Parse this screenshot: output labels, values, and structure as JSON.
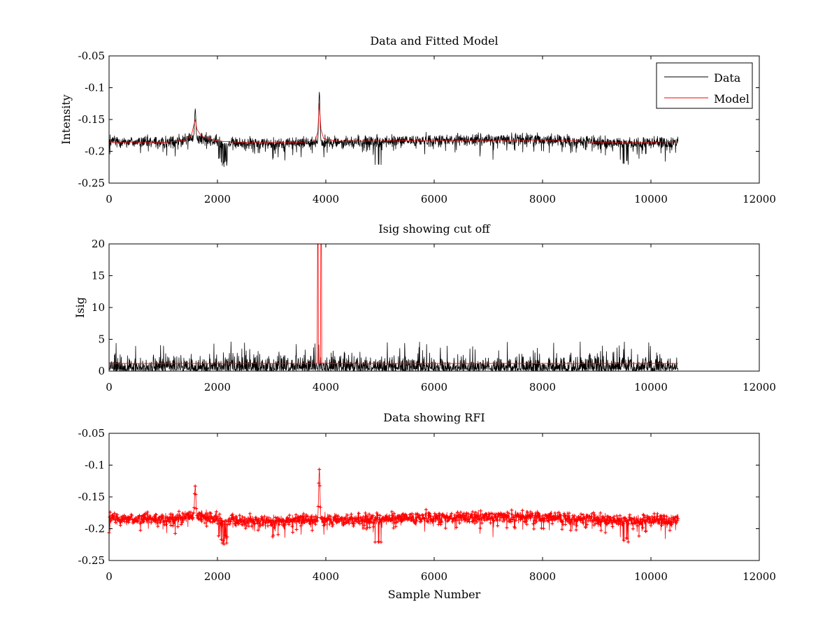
{
  "figure": {
    "background": "#ffffff"
  },
  "colors": {
    "data": "#000000",
    "model": "#ff0000",
    "axes": "#000000"
  },
  "chart_data": [
    {
      "type": "line",
      "title": "Data and Fitted Model",
      "xlabel": "",
      "ylabel": "Intensity",
      "xlim": [
        0,
        12000
      ],
      "ylim": [
        -0.25,
        -0.05
      ],
      "y_reversed": true,
      "xticks": [
        "0",
        "2000",
        "4000",
        "6000",
        "8000",
        "10000",
        "12000"
      ],
      "yticks": [
        "-0.05",
        "-0.1",
        "-0.15",
        "-0.2",
        "-0.25"
      ],
      "grid": false,
      "legend": {
        "position": "top-right",
        "entries": [
          "Data",
          "Model"
        ]
      },
      "series": [
        {
          "name": "Data",
          "color": "#000000",
          "style": "line",
          "x_range": [
            0,
            10500
          ],
          "baseline": [
            [
              0,
              -0.184
            ],
            [
              1000,
              -0.186
            ],
            [
              1500,
              -0.178
            ],
            [
              2200,
              -0.188
            ],
            [
              3500,
              -0.186
            ],
            [
              4800,
              -0.185
            ],
            [
              6000,
              -0.182
            ],
            [
              8000,
              -0.181
            ],
            [
              8800,
              -0.185
            ],
            [
              9600,
              -0.188
            ],
            [
              10500,
              -0.185
            ]
          ],
          "noise_amplitude": 0.018,
          "peaks": [
            [
              1590,
              -0.133
            ],
            [
              3880,
              -0.108
            ]
          ],
          "dips": [
            [
              2100,
              -0.225
            ],
            [
              4950,
              -0.223
            ],
            [
              9500,
              -0.223
            ]
          ]
        },
        {
          "name": "Model",
          "color": "#ff0000",
          "style": "line",
          "points": [
            [
              0,
              -0.186
            ],
            [
              1000,
              -0.186
            ],
            [
              1400,
              -0.183
            ],
            [
              1520,
              -0.175
            ],
            [
              1560,
              -0.16
            ],
            [
              1590,
              -0.15
            ],
            [
              1620,
              -0.165
            ],
            [
              1700,
              -0.176
            ],
            [
              2000,
              -0.184
            ],
            [
              2500,
              -0.186
            ],
            [
              3500,
              -0.186
            ],
            [
              3800,
              -0.184
            ],
            [
              3850,
              -0.17
            ],
            [
              3880,
              -0.125
            ],
            [
              3910,
              -0.165
            ],
            [
              3960,
              -0.18
            ],
            [
              4200,
              -0.184
            ],
            [
              5000,
              -0.184
            ],
            [
              6000,
              -0.183
            ],
            [
              7000,
              -0.183
            ],
            [
              8000,
              -0.182
            ],
            [
              8500,
              -0.183
            ],
            [
              9000,
              -0.186
            ],
            [
              9800,
              -0.187
            ],
            [
              10200,
              -0.185
            ],
            [
              10500,
              -0.185
            ]
          ]
        }
      ]
    },
    {
      "type": "line",
      "title": "Isig showing cut off",
      "xlabel": "",
      "ylabel": "Isig",
      "xlim": [
        0,
        12000
      ],
      "ylim": [
        0,
        20
      ],
      "xticks": [
        "0",
        "2000",
        "4000",
        "6000",
        "8000",
        "10000",
        "12000"
      ],
      "yticks": [
        "0",
        "5",
        "10",
        "15",
        "20"
      ],
      "grid": false,
      "series": [
        {
          "color": "#000000",
          "style": "line",
          "x_range": [
            0,
            10500
          ],
          "noise_amplitude": 3.0,
          "max_value": 4.6
        },
        {
          "color": "#ff0000",
          "style": "line",
          "points": [
            [
              0,
              1.2
            ],
            [
              3840,
              1.2
            ],
            [
              3848,
              20
            ],
            [
              3858,
              20
            ],
            [
              3863,
              1.2
            ],
            [
              3900,
              1.2
            ],
            [
              3908,
              20
            ],
            [
              3920,
              20
            ],
            [
              3925,
              1.2
            ],
            [
              10500,
              1.2
            ]
          ]
        }
      ]
    },
    {
      "type": "line",
      "title": "Data showing RFI",
      "xlabel": "Sample Number",
      "ylabel": "",
      "xlim": [
        0,
        12000
      ],
      "ylim": [
        -0.25,
        -0.05
      ],
      "y_reversed": true,
      "xticks": [
        "0",
        "2000",
        "4000",
        "6000",
        "8000",
        "10000",
        "12000"
      ],
      "yticks": [
        "-0.05",
        "-0.1",
        "-0.15",
        "-0.2",
        "-0.25"
      ],
      "grid": false,
      "series": [
        {
          "color": "#ff0000",
          "style": "line-with-plus-markers",
          "x_range": [
            0,
            10500
          ],
          "baseline": [
            [
              0,
              -0.184
            ],
            [
              1000,
              -0.186
            ],
            [
              1500,
              -0.178
            ],
            [
              2200,
              -0.188
            ],
            [
              3500,
              -0.186
            ],
            [
              4800,
              -0.185
            ],
            [
              6000,
              -0.182
            ],
            [
              8000,
              -0.181
            ],
            [
              8800,
              -0.185
            ],
            [
              9600,
              -0.188
            ],
            [
              10500,
              -0.185
            ]
          ],
          "noise_amplitude": 0.018,
          "peaks": [
            [
              1590,
              -0.133
            ],
            [
              3880,
              -0.108
            ]
          ],
          "dips": [
            [
              2100,
              -0.225
            ],
            [
              4950,
              -0.223
            ],
            [
              9500,
              -0.223
            ]
          ]
        }
      ]
    }
  ]
}
